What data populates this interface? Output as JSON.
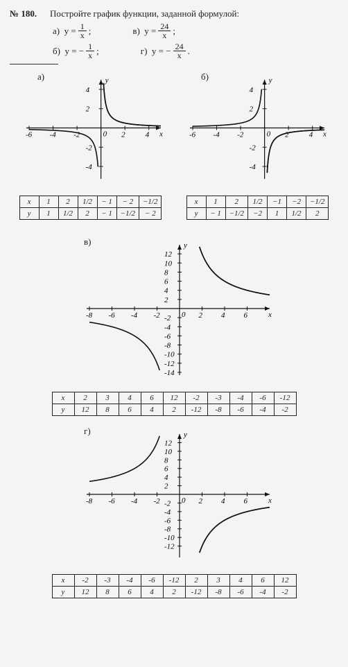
{
  "problem_number": "№ 180.",
  "problem_text": "Постройте график функции, заданной формулой:",
  "formulas": {
    "a": {
      "label": "а)",
      "expr_prefix": "y =",
      "num": "1",
      "den": "x",
      "suffix": ";"
    },
    "b": {
      "label": "б)",
      "expr_prefix": "y = −",
      "num": "1",
      "den": "x",
      "suffix": ";"
    },
    "v": {
      "label": "в)",
      "expr_prefix": "y =",
      "num": "24",
      "den": "x",
      "suffix": ";"
    },
    "g": {
      "label": "г)",
      "expr_prefix": "y = −",
      "num": "24",
      "den": "x",
      "suffix": "."
    }
  },
  "charts": {
    "a": {
      "label": "а)",
      "type": "hyperbola",
      "x_range": [
        -6,
        5
      ],
      "y_range": [
        -5,
        5
      ],
      "x_ticks": [
        -6,
        -4,
        -2,
        0,
        2,
        4
      ],
      "y_ticks": [
        -4,
        -2,
        2,
        4
      ],
      "function": "1/x",
      "axis_color": "#111",
      "curve_color": "#111",
      "bg": "#f4f4f2"
    },
    "b": {
      "label": "б)",
      "type": "hyperbola",
      "x_range": [
        -6,
        5
      ],
      "y_range": [
        -5,
        5
      ],
      "x_ticks": [
        -6,
        -4,
        -2,
        0,
        2,
        4
      ],
      "y_ticks": [
        -4,
        -2,
        2,
        4
      ],
      "function": "-1/x",
      "axis_color": "#111",
      "curve_color": "#111",
      "bg": "#f4f4f2"
    },
    "v": {
      "label": "в)",
      "type": "hyperbola",
      "x_range": [
        -8,
        8
      ],
      "y_range": [
        -14,
        14
      ],
      "x_ticks": [
        -8,
        -6,
        -4,
        -2,
        0,
        2,
        4,
        6
      ],
      "y_ticks": [
        -14,
        -12,
        -10,
        -8,
        -6,
        -4,
        -2,
        2,
        4,
        6,
        8,
        10,
        12
      ],
      "function": "24/x",
      "axis_color": "#111",
      "curve_color": "#111",
      "bg": "#f4f4f2"
    },
    "g": {
      "label": "г)",
      "type": "hyperbola",
      "x_range": [
        -8,
        8
      ],
      "y_range": [
        -14,
        14
      ],
      "x_ticks": [
        -8,
        -6,
        -4,
        -2,
        0,
        2,
        4,
        6
      ],
      "y_ticks": [
        -12,
        -10,
        -8,
        -6,
        -4,
        -2,
        2,
        4,
        6,
        8,
        10,
        12
      ],
      "function": "-24/x",
      "axis_color": "#111",
      "curve_color": "#111",
      "bg": "#f4f4f2"
    }
  },
  "tables": {
    "a": {
      "headers": [
        "x",
        "y"
      ],
      "cols_x": [
        "1",
        "2",
        "1/2",
        "− 1",
        "− 2",
        "−1/2"
      ],
      "cols_y": [
        "1",
        "1/2",
        "2",
        "− 1",
        "−1/2",
        "− 2"
      ]
    },
    "b": {
      "headers": [
        "x",
        "y"
      ],
      "cols_x": [
        "1",
        "2",
        "1/2",
        "−1",
        "−2",
        "−1/2"
      ],
      "cols_y": [
        "− 1",
        "−1/2",
        "−2",
        "1",
        "1/2",
        "2"
      ]
    },
    "v": {
      "headers": [
        "x",
        "y"
      ],
      "cols_x": [
        "2",
        "3",
        "4",
        "6",
        "12",
        "-2",
        "-3",
        "-4",
        "-6",
        "-12"
      ],
      "cols_y": [
        "12",
        "8",
        "6",
        "4",
        "2",
        "-12",
        "-8",
        "-6",
        "-4",
        "-2"
      ]
    },
    "g": {
      "headers": [
        "x",
        "y"
      ],
      "cols_x": [
        "-2",
        "-3",
        "-4",
        "-6",
        "-12",
        "2",
        "3",
        "4",
        "6",
        "12"
      ],
      "cols_y": [
        "12",
        "8",
        "6",
        "4",
        "2",
        "-12",
        "-8",
        "-6",
        "-4",
        "-2"
      ]
    }
  },
  "axis_labels": {
    "x": "x",
    "y": "y"
  },
  "style": {
    "font_family": "Times New Roman",
    "text_color": "#222222",
    "background": "#f4f4f2",
    "stroke": "#111111",
    "table_border": "#222222"
  }
}
